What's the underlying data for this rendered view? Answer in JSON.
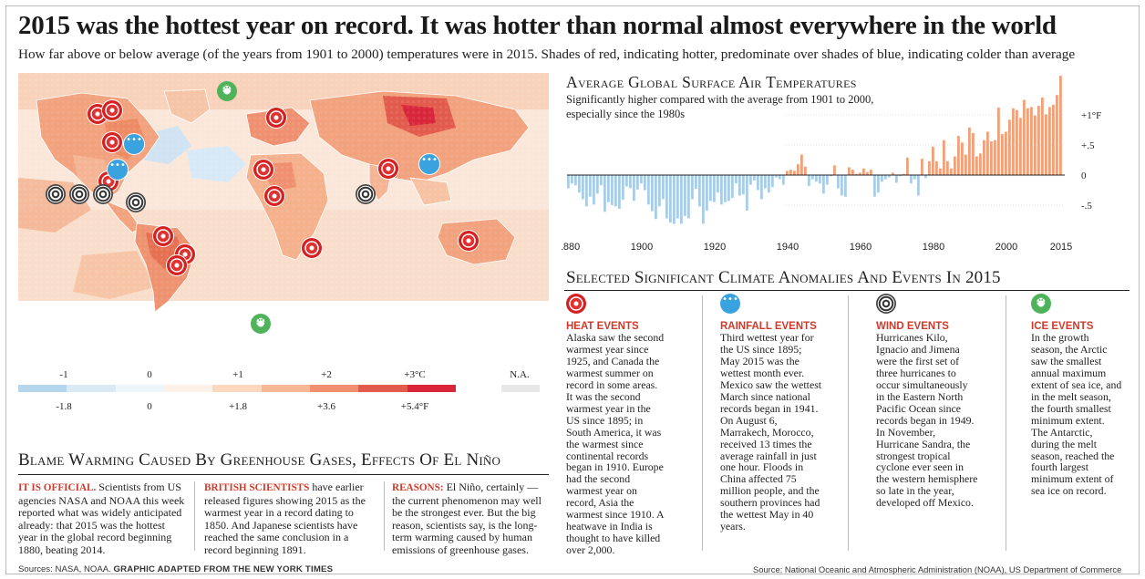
{
  "title": "2015 was the hottest year on record. It was hotter than normal almost everywhere in the world",
  "subtitle": "How far above or below average (of the years from 1901 to 2000) temperatures were in 2015. Shades of red, indicating hotter, predominate over shades of blue, indicating colder than average",
  "legend": {
    "celsius_labels": [
      "-1",
      "0",
      "+1",
      "+2",
      "+3°C"
    ],
    "fahrenheit_labels": [
      "-1.8",
      "0",
      "+1.8",
      "+3.6",
      "+5.4°F"
    ],
    "na_label": "N.A.",
    "colors": [
      "#b5d6ec",
      "#d9eaf5",
      "#eef5fb",
      "#fdf2ea",
      "#fbd8bf",
      "#f7b896",
      "#f09070",
      "#e35b4d",
      "#d9263a"
    ],
    "na_color": "#e8e8e8"
  },
  "blame": {
    "title": "Blame Warming Caused By Greenhouse Gases, Effects Of El Niño",
    "col1_lead": "IT IS OFFICIAL.",
    "col1_text": " Scientists from US agencies NASA and NOAA this week reported what was widely anticipated already: that 2015 was the hottest year in the global record beginning 1880, beating 2014.",
    "col2_lead": "BRITISH SCIENTISTS",
    "col2_text": " have earlier released figures showing 2015 as the warmest year in a record dating to 1850. And Japanese scientists have reached the same conclusion in a record beginning 1891.",
    "col3_lead": "REASONS:",
    "col3_text": " El Niño, certainly — the current phenomenon may well be the strongest ever. But the big reason, scientists say, is the long-term warming caused by human emissions of greenhouse gases."
  },
  "footer": {
    "sources_left": "Sources: NASA, NOAA. ",
    "credit": "GRAPHIC ADAPTED FROM THE NEW YORK TIMES",
    "sources_right": "Source: National Oceanic and Atmospheric Administration (NOAA), US Department of Commerce"
  },
  "chart_title": "Average Global Surface Air Temperatures",
  "chart_subtitle": "Significantly higher compared with the average from 1901 to 2000, especially since the 1980s",
  "chart_data": {
    "type": "bar",
    "ylabel": "°F",
    "y_tick_labels": [
      "+1°F",
      "+.5",
      "0",
      "-.5"
    ],
    "y_ticks": [
      1,
      0.5,
      0,
      -0.5
    ],
    "x_tick_labels": [
      "1880",
      "1900",
      "1920",
      "1940",
      "1960",
      "1980",
      "2000",
      "2015"
    ],
    "ylim": [
      -0.85,
      1.75
    ],
    "x_start": 1880,
    "x_end": 2015,
    "values": [
      -0.22,
      -0.14,
      -0.17,
      -0.29,
      -0.4,
      -0.52,
      -0.36,
      -0.49,
      -0.31,
      -0.17,
      -0.61,
      -0.45,
      -0.5,
      -0.52,
      -0.56,
      -0.41,
      -0.19,
      -0.22,
      -0.43,
      -0.24,
      -0.14,
      -0.25,
      -0.49,
      -0.6,
      -0.73,
      -0.52,
      -0.4,
      -0.72,
      -0.79,
      -0.81,
      -0.72,
      -0.81,
      -0.68,
      -0.72,
      -0.4,
      -0.23,
      -0.52,
      -0.81,
      -0.59,
      -0.43,
      -0.45,
      -0.29,
      -0.49,
      -0.45,
      -0.43,
      -0.38,
      -0.14,
      -0.34,
      -0.32,
      -0.59,
      -0.16,
      -0.09,
      -0.25,
      -0.4,
      -0.22,
      -0.29,
      -0.2,
      -0.04,
      -0.07,
      -0.16,
      0.07,
      0.09,
      0.07,
      0.18,
      0.34,
      0.14,
      -0.18,
      -0.07,
      -0.11,
      -0.14,
      -0.31,
      -0.16,
      -0.02,
      0.16,
      -0.22,
      -0.34,
      -0.36,
      0.13,
      0.09,
      0.02,
      0.04,
      0.11,
      0.05,
      0.09,
      -0.36,
      -0.29,
      -0.11,
      -0.07,
      -0.04,
      0.04,
      -0.13,
      -0.02,
      0.02,
      0.29,
      -0.14,
      -0.07,
      -0.34,
      0.27,
      -0.05,
      0.23,
      0.47,
      0.23,
      0.11,
      0.58,
      0.23,
      0.11,
      0.31,
      0.65,
      0.54,
      0.34,
      0.79,
      0.7,
      0.31,
      0.36,
      0.58,
      0.72,
      0.56,
      0.58,
      1.12,
      0.68,
      0.72,
      0.92,
      1.11,
      1.08,
      0.95,
      1.25,
      1.11,
      1.13,
      0.99,
      1.15,
      1.29,
      1.01,
      1.13,
      1.17,
      1.33,
      1.65
    ]
  },
  "anomalies": {
    "title": "Selected Significant Climate Anomalies And Events In 2015",
    "events": [
      {
        "head": "HEAT EVENTS",
        "icon": "heat",
        "body": "Alaska saw the second warmest year since 1925, and Canada the warmest summer on record in some areas. It was the second warmest year in the US since 1895; in South America, it was the warmest since continental records began in 1910. Europe had the second warmest year on record, Asia the warmest since 1910. A heatwave in India is thought to have killed over 2,000."
      },
      {
        "head": "RAINFALL EVENTS",
        "icon": "rain",
        "body": "Third wettest year for the US since 1895; May 2015 was the wettest month ever. Mexico saw the wettest March since national records began in 1941. On August 6, Marrakech, Morocco, received 13 times the average rainfall in just one hour. Floods in China affected 75 million people, and the southern provinces had the wettest May in 40 years."
      },
      {
        "head": "WIND EVENTS",
        "icon": "wind",
        "body": "Hurricanes Kilo, Ignacio and Jimena were the first set of three hurricanes to occur simultaneously in the Eastern North Pacific Ocean since records began in 1949. In November, Hurricane Sandra, the strongest tropical cyclone ever seen in the western hemisphere so late in the year, developed off Mexico."
      },
      {
        "head": "ICE EVENTS",
        "icon": "ice",
        "body": "In the growth season, the Arctic saw the smallest annual maximum extent of sea ice, and in the melt season, the fourth smallest minimum extent. The Antarctic, during the melt season, reached the fourth largest minimum extent of sea ice on record."
      }
    ]
  },
  "map_markers": [
    {
      "type": "ice"
    },
    {
      "type": "heat"
    },
    {
      "type": "heat"
    },
    {
      "type": "heat"
    },
    {
      "type": "heat"
    },
    {
      "type": "heat"
    },
    {
      "type": "rain"
    },
    {
      "type": "rain"
    },
    {
      "type": "heat"
    },
    {
      "type": "wind"
    },
    {
      "type": "wind"
    },
    {
      "type": "wind"
    },
    {
      "type": "wind"
    },
    {
      "type": "heat"
    },
    {
      "type": "heat"
    },
    {
      "type": "heat"
    },
    {
      "type": "rain"
    },
    {
      "type": "wind"
    },
    {
      "type": "heat"
    },
    {
      "type": "heat"
    },
    {
      "type": "heat"
    },
    {
      "type": "heat"
    },
    {
      "type": "ice"
    }
  ]
}
